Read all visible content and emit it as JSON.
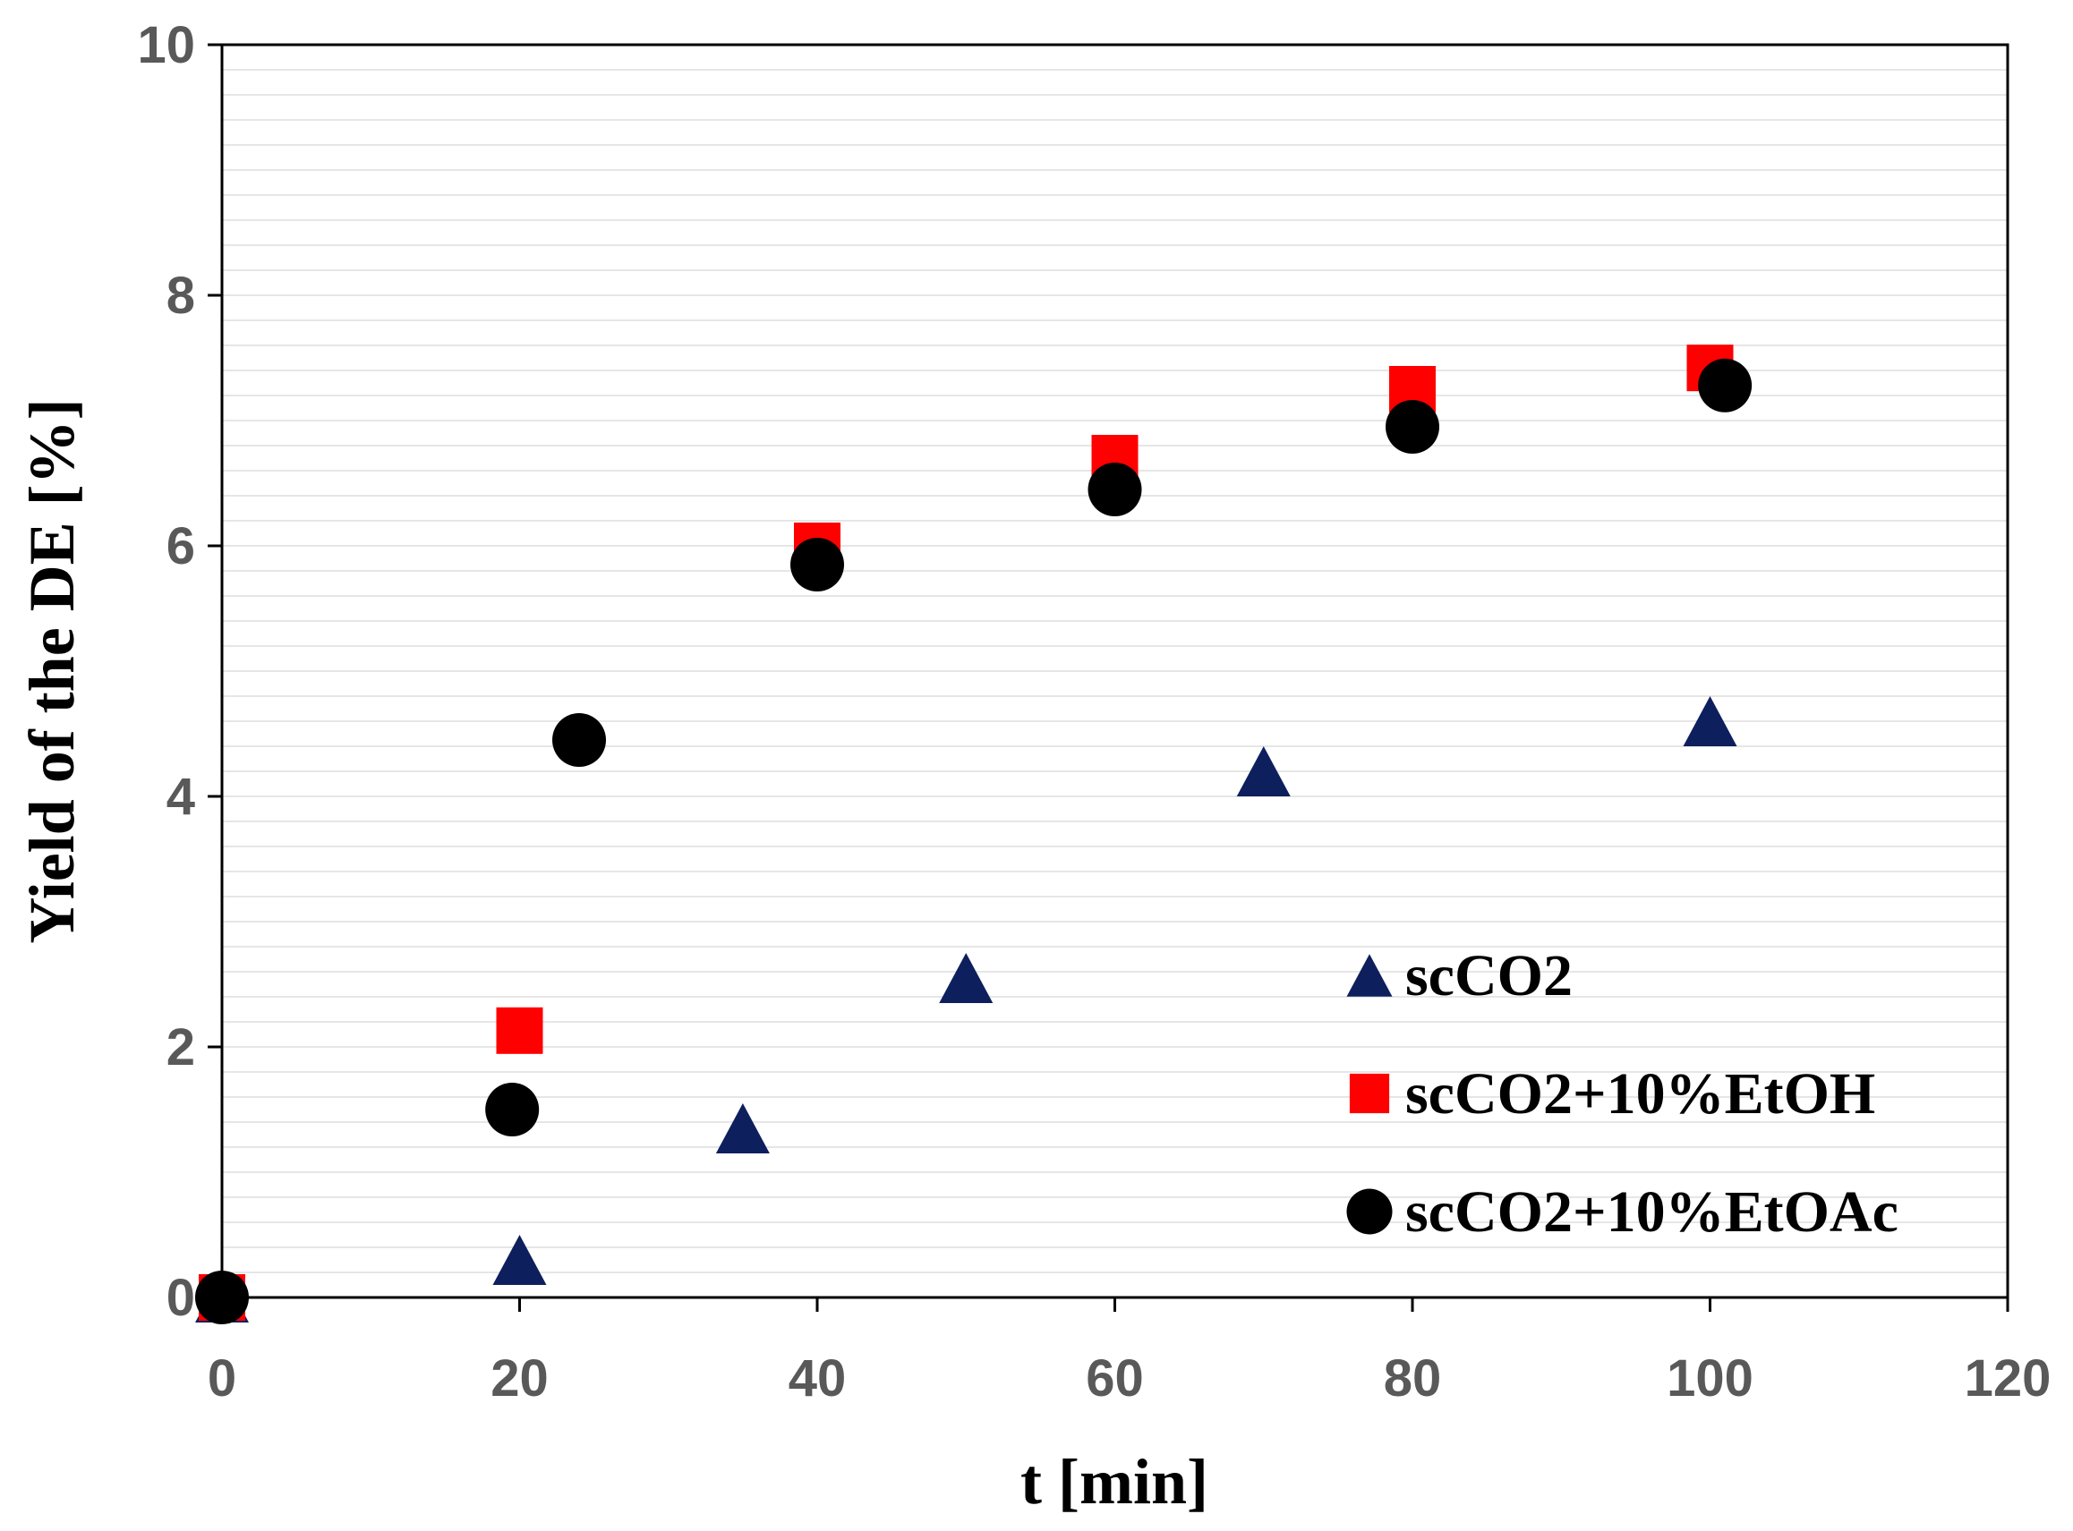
{
  "chart_data": {
    "type": "scatter",
    "title": "",
    "xlabel": "t [min]",
    "ylabel": "Yield of the DE [%]",
    "xlim": [
      0,
      120
    ],
    "ylim": [
      0,
      10
    ],
    "xticks": [
      0,
      20,
      40,
      60,
      80,
      100,
      120
    ],
    "yticks": [
      0,
      2,
      4,
      6,
      8,
      10
    ],
    "minor_gridlines": true,
    "legend_position": "bottom-right",
    "series": [
      {
        "name": "scCO2",
        "marker": "triangle",
        "color": "#0d1f5c",
        "points": [
          {
            "x": 0,
            "y": 0.0
          },
          {
            "x": 20,
            "y": 0.3
          },
          {
            "x": 35,
            "y": 1.35
          },
          {
            "x": 50,
            "y": 2.55
          },
          {
            "x": 70,
            "y": 4.2
          },
          {
            "x": 100,
            "y": 4.6
          }
        ]
      },
      {
        "name": "scCO2+10%EtOH",
        "marker": "square",
        "color": "#ff0000",
        "points": [
          {
            "x": 0,
            "y": 0.0
          },
          {
            "x": 20,
            "y": 2.13
          },
          {
            "x": 40,
            "y": 6.0
          },
          {
            "x": 60,
            "y": 6.7
          },
          {
            "x": 80,
            "y": 7.25
          },
          {
            "x": 100,
            "y": 7.42
          }
        ]
      },
      {
        "name": "scCO2+10%EtOAc",
        "marker": "circle",
        "color": "#000000",
        "points": [
          {
            "x": 0,
            "y": 0.0
          },
          {
            "x": 19.5,
            "y": 1.5
          },
          {
            "x": 24,
            "y": 4.45
          },
          {
            "x": 40,
            "y": 5.85
          },
          {
            "x": 60,
            "y": 6.45
          },
          {
            "x": 80,
            "y": 6.95
          },
          {
            "x": 101,
            "y": 7.28
          }
        ]
      }
    ]
  }
}
